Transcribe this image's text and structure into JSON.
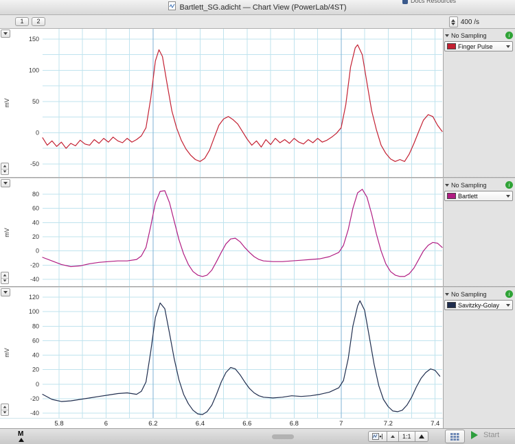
{
  "window": {
    "title": "Bartlett_SG.adicht — Chart View (PowerLab/4ST)",
    "background_fragment": "Docs Resources"
  },
  "toolbar": {
    "page_buttons": [
      "1",
      "2"
    ],
    "sample_rate": "400 /s"
  },
  "labels": {
    "no_sampling": "No Sampling"
  },
  "bottom_bar": {
    "marker_label": "M",
    "zoom_label": "1:1",
    "start_label": "Start"
  },
  "colors": {
    "grid": "#bfe3ee",
    "grid_major": "#7fb2d6",
    "info_green": "#2fa336",
    "start_green": "#2e9e3e"
  },
  "x_axis": {
    "range": [
      5.73,
      7.43
    ],
    "ticks": [
      "5.8",
      "6",
      "6.2",
      "6.4",
      "6.6",
      "6.8",
      "7",
      "7.2",
      "7.4"
    ],
    "grid": {
      "start": 5.8,
      "step": 0.1,
      "count": 17
    },
    "major": [
      6.2,
      7
    ]
  },
  "chart_data": [
    {
      "type": "line",
      "name": "Finger Pulse",
      "unit": "mV",
      "color": "#c32032",
      "ylim": [
        -71,
        166.5
      ],
      "yticks": [
        150,
        100,
        50,
        0,
        -50
      ],
      "grid_max": 150,
      "grid_min": -50,
      "grid_step": 25,
      "points": [
        [
          5.73,
          -8
        ],
        [
          5.75,
          -20
        ],
        [
          5.77,
          -13
        ],
        [
          5.79,
          -22
        ],
        [
          5.81,
          -15
        ],
        [
          5.83,
          -25
        ],
        [
          5.85,
          -17
        ],
        [
          5.87,
          -21
        ],
        [
          5.89,
          -12
        ],
        [
          5.91,
          -18
        ],
        [
          5.93,
          -20
        ],
        [
          5.95,
          -11
        ],
        [
          5.97,
          -17
        ],
        [
          5.99,
          -9
        ],
        [
          6.01,
          -15
        ],
        [
          6.03,
          -7
        ],
        [
          6.05,
          -13
        ],
        [
          6.07,
          -16
        ],
        [
          6.09,
          -9
        ],
        [
          6.11,
          -15
        ],
        [
          6.13,
          -11
        ],
        [
          6.15,
          -5
        ],
        [
          6.17,
          8
        ],
        [
          6.19,
          55
        ],
        [
          6.21,
          115
        ],
        [
          6.225,
          133
        ],
        [
          6.24,
          122
        ],
        [
          6.26,
          78
        ],
        [
          6.28,
          35
        ],
        [
          6.3,
          8
        ],
        [
          6.32,
          -12
        ],
        [
          6.34,
          -26
        ],
        [
          6.36,
          -36
        ],
        [
          6.38,
          -43
        ],
        [
          6.4,
          -46
        ],
        [
          6.42,
          -41
        ],
        [
          6.44,
          -28
        ],
        [
          6.46,
          -8
        ],
        [
          6.48,
          12
        ],
        [
          6.5,
          22
        ],
        [
          6.52,
          26
        ],
        [
          6.54,
          21
        ],
        [
          6.56,
          14
        ],
        [
          6.58,
          2
        ],
        [
          6.6,
          -10
        ],
        [
          6.62,
          -20
        ],
        [
          6.64,
          -13
        ],
        [
          6.66,
          -23
        ],
        [
          6.68,
          -11
        ],
        [
          6.7,
          -19
        ],
        [
          6.72,
          -9
        ],
        [
          6.74,
          -16
        ],
        [
          6.76,
          -11
        ],
        [
          6.78,
          -17
        ],
        [
          6.8,
          -9
        ],
        [
          6.82,
          -15
        ],
        [
          6.84,
          -18
        ],
        [
          6.86,
          -11
        ],
        [
          6.88,
          -16
        ],
        [
          6.9,
          -9
        ],
        [
          6.92,
          -15
        ],
        [
          6.94,
          -12
        ],
        [
          6.96,
          -7
        ],
        [
          6.98,
          -1
        ],
        [
          7.0,
          8
        ],
        [
          7.02,
          45
        ],
        [
          7.04,
          105
        ],
        [
          7.06,
          136
        ],
        [
          7.07,
          141
        ],
        [
          7.09,
          125
        ],
        [
          7.11,
          80
        ],
        [
          7.13,
          35
        ],
        [
          7.15,
          5
        ],
        [
          7.17,
          -20
        ],
        [
          7.19,
          -33
        ],
        [
          7.21,
          -42
        ],
        [
          7.23,
          -46
        ],
        [
          7.25,
          -43
        ],
        [
          7.27,
          -46
        ],
        [
          7.29,
          -34
        ],
        [
          7.31,
          -17
        ],
        [
          7.33,
          2
        ],
        [
          7.35,
          20
        ],
        [
          7.37,
          29
        ],
        [
          7.39,
          26
        ],
        [
          7.41,
          12
        ],
        [
          7.43,
          2
        ]
      ]
    },
    {
      "type": "line",
      "name": "Bartlett",
      "unit": "mV",
      "color": "#b01c82",
      "ylim": [
        -49.6,
        102.3
      ],
      "yticks": [
        80,
        60,
        40,
        20,
        0,
        -20,
        -40
      ],
      "grid_max": 80,
      "grid_min": -40,
      "grid_step": 20,
      "points": [
        [
          5.73,
          -9
        ],
        [
          5.77,
          -14
        ],
        [
          5.81,
          -19
        ],
        [
          5.85,
          -22
        ],
        [
          5.89,
          -21
        ],
        [
          5.93,
          -18
        ],
        [
          5.97,
          -16
        ],
        [
          6.01,
          -15
        ],
        [
          6.05,
          -14
        ],
        [
          6.09,
          -14
        ],
        [
          6.13,
          -12
        ],
        [
          6.15,
          -7
        ],
        [
          6.17,
          5
        ],
        [
          6.19,
          35
        ],
        [
          6.21,
          68
        ],
        [
          6.23,
          84
        ],
        [
          6.25,
          85
        ],
        [
          6.27,
          68
        ],
        [
          6.29,
          42
        ],
        [
          6.31,
          16
        ],
        [
          6.33,
          -4
        ],
        [
          6.35,
          -19
        ],
        [
          6.37,
          -29
        ],
        [
          6.39,
          -34
        ],
        [
          6.41,
          -36
        ],
        [
          6.43,
          -34
        ],
        [
          6.45,
          -27
        ],
        [
          6.47,
          -15
        ],
        [
          6.49,
          -2
        ],
        [
          6.51,
          10
        ],
        [
          6.53,
          17
        ],
        [
          6.55,
          18
        ],
        [
          6.57,
          13
        ],
        [
          6.59,
          5
        ],
        [
          6.61,
          -2
        ],
        [
          6.63,
          -8
        ],
        [
          6.65,
          -12
        ],
        [
          6.67,
          -14
        ],
        [
          6.71,
          -15
        ],
        [
          6.75,
          -15
        ],
        [
          6.79,
          -14
        ],
        [
          6.83,
          -13
        ],
        [
          6.87,
          -12
        ],
        [
          6.91,
          -11
        ],
        [
          6.95,
          -8
        ],
        [
          6.99,
          -2
        ],
        [
          7.01,
          8
        ],
        [
          7.03,
          30
        ],
        [
          7.05,
          60
        ],
        [
          7.07,
          82
        ],
        [
          7.09,
          87
        ],
        [
          7.11,
          76
        ],
        [
          7.13,
          52
        ],
        [
          7.15,
          24
        ],
        [
          7.17,
          0
        ],
        [
          7.19,
          -18
        ],
        [
          7.21,
          -29
        ],
        [
          7.23,
          -34
        ],
        [
          7.25,
          -36
        ],
        [
          7.27,
          -36
        ],
        [
          7.29,
          -32
        ],
        [
          7.31,
          -24
        ],
        [
          7.33,
          -12
        ],
        [
          7.35,
          0
        ],
        [
          7.37,
          8
        ],
        [
          7.39,
          12
        ],
        [
          7.41,
          11
        ],
        [
          7.43,
          5
        ]
      ]
    },
    {
      "type": "line",
      "name": "Savitzky-Golay",
      "unit": "mV",
      "color": "#1f2d4e",
      "ylim": [
        -46.6,
        133.3
      ],
      "yticks": [
        120,
        100,
        80,
        60,
        40,
        20,
        0,
        -20,
        -40
      ],
      "grid_max": 120,
      "grid_min": -40,
      "grid_step": 20,
      "points": [
        [
          5.73,
          -14
        ],
        [
          5.77,
          -21
        ],
        [
          5.81,
          -24
        ],
        [
          5.85,
          -23
        ],
        [
          5.89,
          -21
        ],
        [
          5.93,
          -19
        ],
        [
          5.97,
          -17
        ],
        [
          6.01,
          -15
        ],
        [
          6.05,
          -13
        ],
        [
          6.09,
          -12
        ],
        [
          6.13,
          -14
        ],
        [
          6.15,
          -10
        ],
        [
          6.17,
          3
        ],
        [
          6.19,
          45
        ],
        [
          6.21,
          92
        ],
        [
          6.23,
          112
        ],
        [
          6.25,
          104
        ],
        [
          6.27,
          70
        ],
        [
          6.29,
          35
        ],
        [
          6.31,
          6
        ],
        [
          6.33,
          -14
        ],
        [
          6.35,
          -27
        ],
        [
          6.37,
          -36
        ],
        [
          6.39,
          -41
        ],
        [
          6.41,
          -42
        ],
        [
          6.43,
          -38
        ],
        [
          6.45,
          -29
        ],
        [
          6.47,
          -14
        ],
        [
          6.49,
          3
        ],
        [
          6.51,
          16
        ],
        [
          6.53,
          23
        ],
        [
          6.55,
          21
        ],
        [
          6.57,
          13
        ],
        [
          6.59,
          3
        ],
        [
          6.61,
          -6
        ],
        [
          6.63,
          -12
        ],
        [
          6.65,
          -16
        ],
        [
          6.67,
          -18
        ],
        [
          6.71,
          -19
        ],
        [
          6.75,
          -18
        ],
        [
          6.79,
          -16
        ],
        [
          6.83,
          -17
        ],
        [
          6.87,
          -16
        ],
        [
          6.91,
          -14
        ],
        [
          6.95,
          -11
        ],
        [
          6.99,
          -5
        ],
        [
          7.01,
          5
        ],
        [
          7.03,
          35
        ],
        [
          7.05,
          80
        ],
        [
          7.07,
          108
        ],
        [
          7.08,
          115
        ],
        [
          7.1,
          102
        ],
        [
          7.12,
          65
        ],
        [
          7.14,
          28
        ],
        [
          7.16,
          -2
        ],
        [
          7.18,
          -21
        ],
        [
          7.2,
          -31
        ],
        [
          7.22,
          -37
        ],
        [
          7.24,
          -38
        ],
        [
          7.26,
          -36
        ],
        [
          7.28,
          -29
        ],
        [
          7.3,
          -18
        ],
        [
          7.32,
          -4
        ],
        [
          7.34,
          8
        ],
        [
          7.36,
          16
        ],
        [
          7.38,
          21
        ],
        [
          7.4,
          19
        ],
        [
          7.42,
          11
        ]
      ]
    }
  ]
}
